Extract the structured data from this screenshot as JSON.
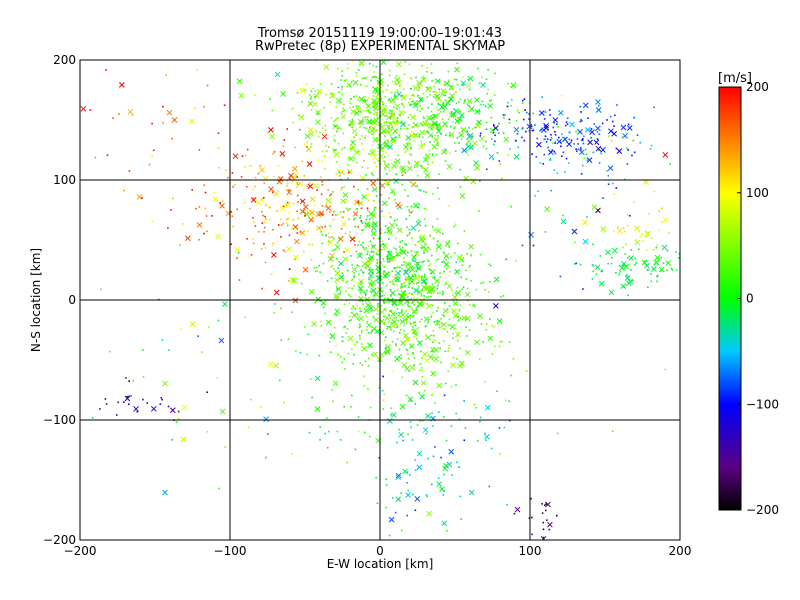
{
  "title": "Tromsø 20151119 19:00:00–19:01:43",
  "subtitle": "RwPretec (8p) EXPERIMENTAL SKYMAP",
  "chart_data": {
    "type": "scatter",
    "xlabel": "E-W location [km]",
    "ylabel": "N-S location [km]",
    "xlim": [
      -200,
      200
    ],
    "ylim": [
      -200,
      200
    ],
    "xticks": [
      "−200",
      "−100",
      "0",
      "100",
      "200"
    ],
    "yticks": [
      "−200",
      "−100",
      "0",
      "100",
      "200"
    ],
    "grid": true,
    "colorbar": {
      "label": "[m/s]",
      "range": [
        -200,
        200
      ],
      "ticks": [
        "−200",
        "−100",
        "0",
        "100",
        "200"
      ]
    },
    "markers": {
      "small": "dot",
      "large": "x"
    },
    "clusters": [
      {
        "cx": 5,
        "cy": 145,
        "sx": 28,
        "sy": 22,
        "n": 520,
        "v": 45,
        "vs": 18
      },
      {
        "cx": 50,
        "cy": 150,
        "sx": 25,
        "sy": 18,
        "n": 160,
        "v": 5,
        "vs": 20
      },
      {
        "cx": 0,
        "cy": 175,
        "sx": 35,
        "sy": 15,
        "n": 160,
        "v": 30,
        "vs": 30
      },
      {
        "cx": 120,
        "cy": 140,
        "sx": 25,
        "sy": 10,
        "n": 140,
        "v": -90,
        "vs": 15
      },
      {
        "cx": 130,
        "cy": 125,
        "sx": 30,
        "sy": 15,
        "n": 60,
        "v": -40,
        "vs": 30
      },
      {
        "cx": 8,
        "cy": 30,
        "sx": 25,
        "sy": 35,
        "n": 650,
        "v": 15,
        "vs": 25
      },
      {
        "cx": 20,
        "cy": -20,
        "sx": 30,
        "sy": 25,
        "n": 380,
        "v": 35,
        "vs": 20
      },
      {
        "cx": -50,
        "cy": 80,
        "sx": 30,
        "sy": 25,
        "n": 220,
        "v": 130,
        "vs": 30
      },
      {
        "cx": -80,
        "cy": 70,
        "sx": 30,
        "sy": 30,
        "n": 70,
        "v": 180,
        "vs": 20
      },
      {
        "cx": 170,
        "cy": 25,
        "sx": 20,
        "sy": 10,
        "n": 80,
        "v": -10,
        "vs": 10
      },
      {
        "cx": 175,
        "cy": 55,
        "sx": 10,
        "sy": 8,
        "n": 30,
        "v": 70,
        "vs": 15
      },
      {
        "cx": -160,
        "cy": -85,
        "sx": 20,
        "sy": 8,
        "n": 25,
        "v": -140,
        "vs": 25
      },
      {
        "cx": 110,
        "cy": -180,
        "sx": 8,
        "sy": 10,
        "n": 20,
        "v": -170,
        "vs": 20
      },
      {
        "cx": 30,
        "cy": -150,
        "sx": 20,
        "sy": 25,
        "n": 60,
        "v": -30,
        "vs": 30
      },
      {
        "cx": 20,
        "cy": -100,
        "sx": 40,
        "sy": 20,
        "n": 80,
        "v": -15,
        "vs": 35
      },
      {
        "cx": -160,
        "cy": 150,
        "sx": 30,
        "sy": 40,
        "n": 40,
        "v": 150,
        "vs": 60
      },
      {
        "cx": 150,
        "cy": 60,
        "sx": 40,
        "sy": 60,
        "n": 60,
        "v": 0,
        "vs": 80
      },
      {
        "cx": -100,
        "cy": -60,
        "sx": 50,
        "sy": 50,
        "n": 60,
        "v": 10,
        "vs": 80
      }
    ]
  }
}
